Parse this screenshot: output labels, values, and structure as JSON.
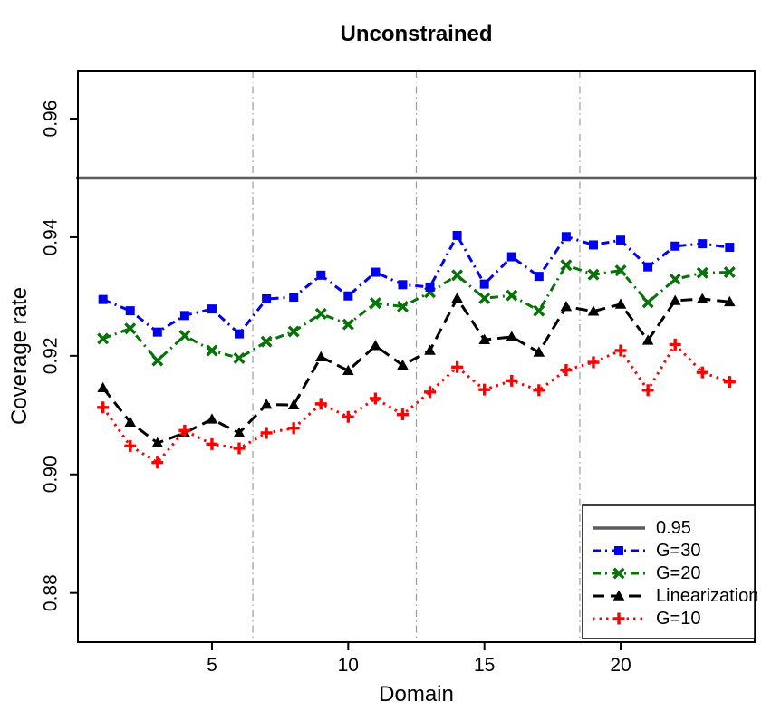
{
  "chart_data": {
    "type": "line",
    "title": "Unconstrained",
    "xlabel": "Domain",
    "ylabel": "Coverage rate",
    "x": [
      1,
      2,
      3,
      4,
      5,
      6,
      7,
      8,
      9,
      10,
      11,
      12,
      13,
      14,
      15,
      16,
      17,
      18,
      19,
      20,
      21,
      22,
      23,
      24
    ],
    "series": [
      {
        "name": "G=30",
        "color": "#0000EE",
        "marker": "square",
        "dash": "dashdot",
        "values": [
          0.9295,
          0.9276,
          0.924,
          0.9268,
          0.9279,
          0.9237,
          0.9296,
          0.9299,
          0.9336,
          0.9301,
          0.9341,
          0.932,
          0.9316,
          0.9403,
          0.9321,
          0.9367,
          0.9334,
          0.9401,
          0.9387,
          0.9395,
          0.935,
          0.9385,
          0.9389,
          0.9383
        ]
      },
      {
        "name": "G=20",
        "color": "#077207",
        "marker": "x",
        "dash": "dashdot",
        "values": [
          0.9229,
          0.9246,
          0.9192,
          0.9234,
          0.9209,
          0.9196,
          0.9224,
          0.9241,
          0.9271,
          0.9253,
          0.9289,
          0.9283,
          0.9307,
          0.9336,
          0.9297,
          0.9302,
          0.9276,
          0.9353,
          0.9337,
          0.9344,
          0.929,
          0.9329,
          0.934,
          0.9341
        ]
      },
      {
        "name": "Linearization",
        "color": "#000000",
        "marker": "triangle",
        "dash": "longdash",
        "values": [
          0.9146,
          0.9088,
          0.9053,
          0.907,
          0.9093,
          0.907,
          0.9118,
          0.9117,
          0.9198,
          0.9175,
          0.9217,
          0.9184,
          0.9209,
          0.9297,
          0.9227,
          0.9232,
          0.9206,
          0.9283,
          0.9275,
          0.9287,
          0.9226,
          0.9293,
          0.9296,
          0.9291
        ]
      },
      {
        "name": "G=10",
        "color": "#FF0000",
        "marker": "plus",
        "dash": "dotted",
        "values": [
          0.9113,
          0.9048,
          0.902,
          0.9074,
          0.9051,
          0.9044,
          0.907,
          0.9078,
          0.9119,
          0.9097,
          0.9128,
          0.9101,
          0.9139,
          0.9181,
          0.9143,
          0.9158,
          0.9142,
          0.9176,
          0.9189,
          0.9209,
          0.9142,
          0.9219,
          0.9172,
          0.9156
        ]
      }
    ],
    "reference_line": {
      "label": "0.95",
      "value": 0.95,
      "color": "#5C5C5C"
    },
    "group_separators": {
      "x": [
        6.5,
        12.5,
        18.5
      ],
      "color": "#9C9C9C",
      "style": "dashdot"
    },
    "xticks": [
      5,
      10,
      15,
      20
    ],
    "yticks": [
      0.88,
      0.9,
      0.92,
      0.94,
      0.96
    ],
    "xlim": [
      0.08,
      24.92
    ],
    "ylim": [
      0.8717,
      0.9681
    ],
    "grid": false,
    "legend": {
      "position": "bottom-right",
      "entries": [
        "0.95",
        "G=30",
        "G=20",
        "Linearization",
        "G=10"
      ]
    },
    "axis_color": "#000000"
  }
}
